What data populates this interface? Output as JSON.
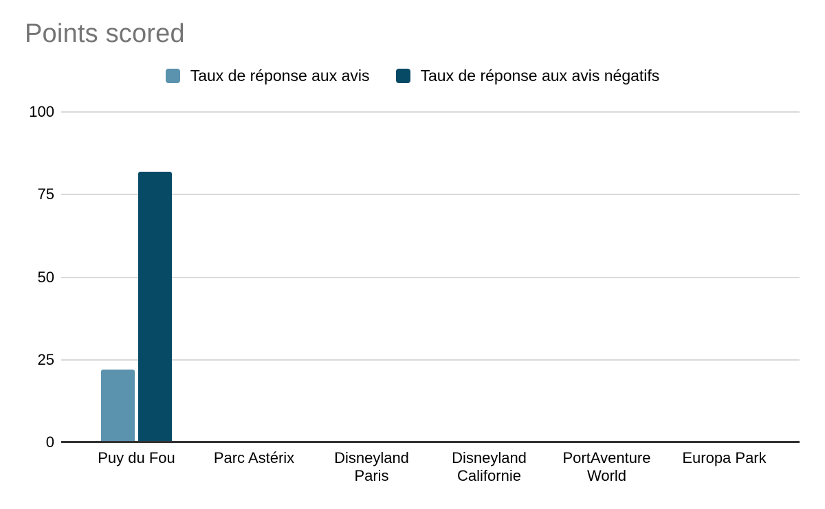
{
  "title": {
    "text": "Points scored",
    "color": "#757575"
  },
  "legend": {
    "items": [
      {
        "label": "Taux de réponse aux avis",
        "color": "#5B92AE"
      },
      {
        "label": "Taux de réponse aux avis négatifs",
        "color": "#074A66"
      }
    ]
  },
  "chart_data": {
    "type": "bar",
    "title": "Points scored",
    "categories": [
      "Puy du Fou",
      "Parc Astérix",
      "Disneyland\nParis",
      "Disneyland\nCalifornie",
      "PortAventure\nWorld",
      "Europa Park"
    ],
    "series": [
      {
        "name": "Taux de réponse aux avis",
        "color": "#5B92AE",
        "values": [
          22,
          0,
          0,
          0,
          0,
          0
        ]
      },
      {
        "name": "Taux de réponse aux avis négatifs",
        "color": "#074A66",
        "values": [
          82,
          0,
          0,
          0,
          0,
          0
        ]
      }
    ],
    "xlabel": "",
    "ylabel": "",
    "ylim": [
      0,
      100
    ],
    "yticks": [
      0,
      25,
      50,
      75,
      100
    ],
    "grid": true,
    "legend_position": "top",
    "axis_colors": {
      "gridline": "#D9D9D9",
      "baseline": "#333333",
      "tick_label": "#000000"
    }
  }
}
